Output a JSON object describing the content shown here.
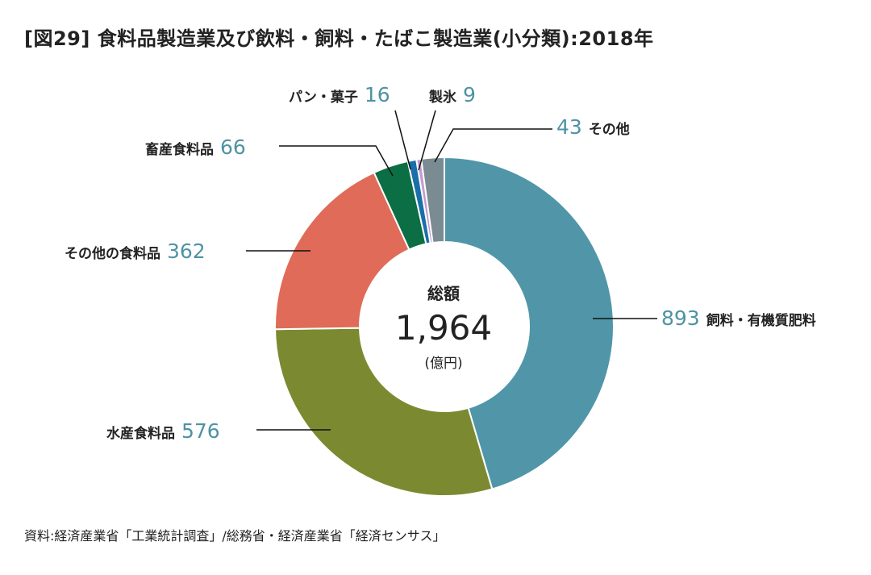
{
  "title": "[図29] 食料品製造業及び飲料・飼料・たばこ製造業(小分類):2018年",
  "source": "資料:経済産業省「工業統計調査」/総務省・経済産業省「経済センサス」",
  "center": {
    "label": "総額",
    "value": "1,964",
    "unit": "(億円)"
  },
  "chart_data": {
    "type": "pie",
    "donut": true,
    "title": "[図29] 食料品製造業及び飲料・飼料・たばこ製造業(小分類):2018年",
    "unit": "億円",
    "total": 1964,
    "slices": [
      {
        "name": "飼料・有機質肥料",
        "value": 893,
        "color": "#5096a8"
      },
      {
        "name": "水産食料品",
        "value": 576,
        "color": "#7b8a30"
      },
      {
        "name": "その他の食料品",
        "value": 362,
        "color": "#e06b58"
      },
      {
        "name": "畜産食料品",
        "value": 66,
        "color": "#0b6e44"
      },
      {
        "name": "パン・菓子",
        "value": 16,
        "color": "#1a6fa8"
      },
      {
        "name": "製氷",
        "value": 9,
        "color": "#c49bd0"
      },
      {
        "name": "その他",
        "value": 43,
        "color": "#7a8c92"
      }
    ],
    "value_color": "#4f93a3"
  }
}
